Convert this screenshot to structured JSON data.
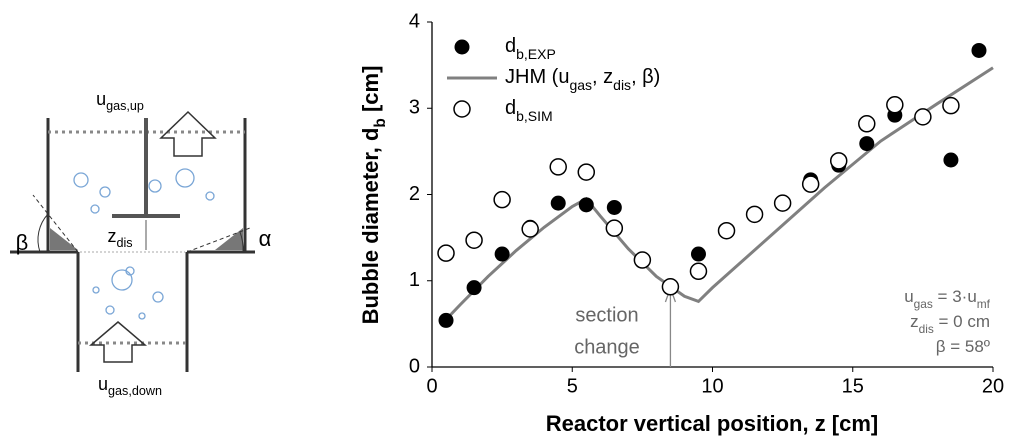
{
  "chart_data": {
    "type": "scatter",
    "ylabel": [
      {
        "t": "Bubble diameter, d"
      },
      {
        "sub": "b"
      },
      {
        "t": " [cm]"
      }
    ],
    "xlabel": [
      {
        "t": "Reactor vertical position, z [cm]"
      }
    ],
    "xlim": [
      0,
      20
    ],
    "xticks": [
      0,
      5,
      10,
      15,
      20
    ],
    "ylim": [
      0,
      4
    ],
    "yticks": [
      0,
      1,
      2,
      3,
      4
    ],
    "legend": "upper-left",
    "series": [
      {
        "name": [
          {
            "t": "d"
          },
          {
            "sub": "b,EXP"
          }
        ],
        "marker": "filled",
        "color": "#000000",
        "x": [
          0.5,
          1.5,
          2.5,
          3.5,
          4.5,
          5.5,
          6.5,
          8.5,
          9.5,
          13.5,
          14.5,
          15.5,
          16.5,
          17.5,
          18.5,
          19.5
        ],
        "values": [
          0.54,
          0.92,
          1.31,
          1.62,
          1.9,
          1.88,
          1.85,
          0.93,
          1.31,
          2.17,
          2.34,
          2.59,
          2.92,
          2.9,
          2.4,
          3.67
        ]
      },
      {
        "name": [
          {
            "t": "JHM (u"
          },
          {
            "sub": "gas"
          },
          {
            "t": ", z"
          },
          {
            "sub": "dis"
          },
          {
            "t": ", β)"
          }
        ],
        "marker": "line",
        "color": "#808080",
        "x": [
          0.5,
          1,
          2,
          3,
          4,
          5,
          5.5,
          6,
          7,
          8,
          9,
          9.5,
          10,
          12,
          14,
          16,
          18,
          20
        ],
        "values": [
          0.55,
          0.72,
          1.05,
          1.35,
          1.62,
          1.86,
          1.95,
          1.75,
          1.37,
          1.05,
          0.82,
          0.76,
          0.92,
          1.5,
          2.08,
          2.62,
          3.05,
          3.47
        ]
      },
      {
        "name": [
          {
            "t": "d"
          },
          {
            "sub": "b,SIM"
          }
        ],
        "marker": "open",
        "color": "#000000",
        "x": [
          0.5,
          1.5,
          2.5,
          3.5,
          4.5,
          5.5,
          6.5,
          7.5,
          8.5,
          9.5,
          10.5,
          11.5,
          12.5,
          13.5,
          14.5,
          15.5,
          16.5,
          17.5,
          18.5
        ],
        "values": [
          1.32,
          1.47,
          1.94,
          1.6,
          2.32,
          2.26,
          1.61,
          1.24,
          0.93,
          1.11,
          1.58,
          1.77,
          1.9,
          2.12,
          2.39,
          2.82,
          3.04,
          2.9,
          3.03
        ]
      }
    ],
    "annotation": [
      "section",
      "change"
    ],
    "params": [
      [
        {
          "t": "u"
        },
        {
          "sub": "gas"
        },
        {
          "t": " = 3·u"
        },
        {
          "sub": "mf"
        }
      ],
      [
        {
          "t": "z"
        },
        {
          "sub": "dis"
        },
        {
          "t": " = 0 cm"
        }
      ],
      [
        {
          "t": "β = 58º"
        }
      ]
    ]
  },
  "diagram": {
    "flow_up": [
      {
        "t": "u"
      },
      {
        "sub": "gas,up"
      }
    ],
    "flow_down": [
      {
        "t": "u"
      },
      {
        "sub": "gas,down"
      }
    ],
    "z_dis": [
      {
        "t": "z"
      },
      {
        "sub": "dis"
      }
    ],
    "beta": "β",
    "alpha": "α"
  }
}
